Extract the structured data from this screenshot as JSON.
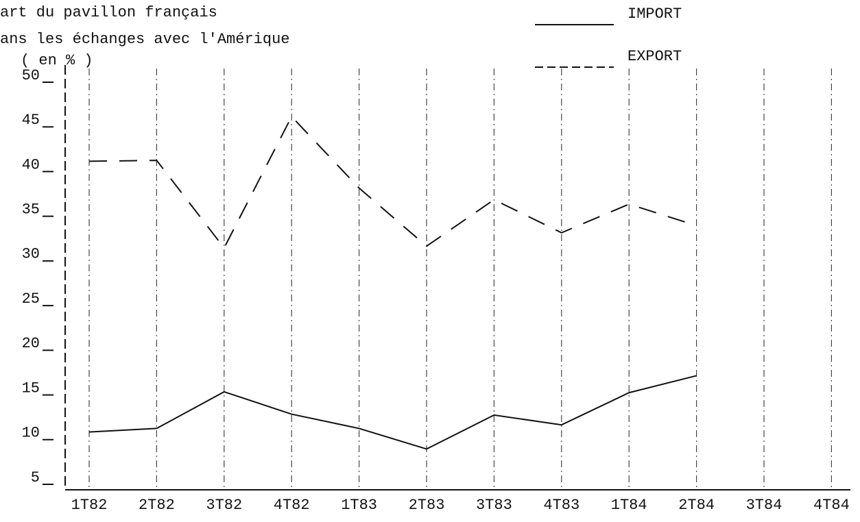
{
  "chart_data": {
    "type": "line",
    "title": [
      "art du pavillon français",
      "ans les échanges avec l'Amérique"
    ],
    "ylabel": "( en % )",
    "categories": [
      "1T82",
      "2T82",
      "3T82",
      "4T82",
      "1T83",
      "2T83",
      "3T83",
      "4T83",
      "1T84",
      "2T84",
      "3T84",
      "4T84"
    ],
    "series": [
      {
        "name": "IMPORT",
        "color": "#111111",
        "style": "solid",
        "values": [
          10.7,
          11.1,
          15.2,
          12.7,
          11.1,
          8.8,
          12.6,
          11.5,
          15.1,
          17,
          null,
          null
        ]
      },
      {
        "name": "EXPORT",
        "color": "#111111",
        "style": "dashed",
        "values": [
          41,
          41.1,
          31.3,
          46,
          38,
          31.5,
          36.7,
          33,
          36.2,
          33.8,
          null,
          null
        ]
      }
    ],
    "ylim": [
      5,
      50
    ],
    "yticks": [
      5,
      10,
      15,
      20,
      25,
      30,
      35,
      40,
      45,
      50
    ],
    "grid": true
  }
}
